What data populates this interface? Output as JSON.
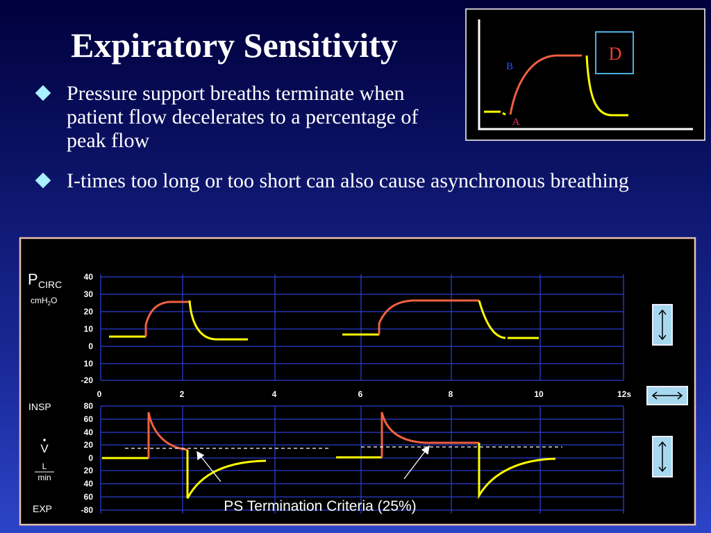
{
  "title": "Expiratory Sensitivity",
  "bullets": [
    "Pressure support breaths terminate when patient flow decelerates to a percentage of peak flow",
    "I-times too long or too short can also cause asynchronous breathing"
  ],
  "inset": {
    "box_label": "D",
    "point_b": "B",
    "point_a": "A"
  },
  "panel": {
    "pressure_label": {
      "main": "P",
      "sub": "CIRC",
      "unit_main": "cmH",
      "unit_sub": "2",
      "unit_end": "O"
    },
    "pressure_ticks": [
      "40",
      "30",
      "20",
      "10",
      "0",
      "10",
      "-20"
    ],
    "time_ticks": [
      "0",
      "2",
      "4",
      "6",
      "8",
      "10",
      "12s"
    ],
    "flow_ticks": [
      "80",
      "60",
      "40",
      "20",
      "0",
      "20",
      "40",
      "60",
      "-80"
    ],
    "flow_label": {
      "insp": "INSP",
      "symbol": "V",
      "unit_top": "L",
      "unit_bottom": "min",
      "exp": "EXP"
    },
    "caption": "PS Termination Criteria (25%)"
  }
}
